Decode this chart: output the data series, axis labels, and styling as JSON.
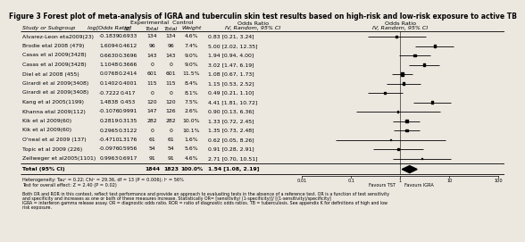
{
  "title": "Figure 3 Forest plot of meta-analysis of IGRA and tuberculin skin test results based on high-risk and low-risk exposure to active TB",
  "studies": [
    {
      "name": "Alvarez-Leon eta2009(23)",
      "log_or": -0.1839,
      "se": 0.6933,
      "exp_total": "134",
      "ctrl_total": "134",
      "weight": "4.6%",
      "or_text": "0.83 [0.21, 3.24]"
    },
    {
      "name": "Brodie etal 2008 (479)",
      "log_or": 1.6094,
      "se": 0.4612,
      "exp_total": "96",
      "ctrl_total": "96",
      "weight": "7.4%",
      "or_text": "5.00 [2.02, 12.35]"
    },
    {
      "name": "Casas et al 2009(3428)",
      "log_or": 0.663,
      "se": 0.3696,
      "exp_total": "143",
      "ctrl_total": "143",
      "weight": "9.0%",
      "or_text": "1.94 [0.94, 4.00]"
    },
    {
      "name": "Casas et al 2009(3428)",
      "log_or": 1.1048,
      "se": 0.3666,
      "exp_total": "0",
      "ctrl_total": "0",
      "weight": "9.0%",
      "or_text": "3.02 [1.47, 6.19]"
    },
    {
      "name": "Diel et al 2008 (455)",
      "log_or": 0.0768,
      "se": 0.2414,
      "exp_total": "601",
      "ctrl_total": "601",
      "weight": "11.5%",
      "or_text": "1.08 [0.67, 1.73]"
    },
    {
      "name": "Girardi et al 2009(3408)",
      "log_or": 0.1402,
      "se": 0.4001,
      "exp_total": "115",
      "ctrl_total": "115",
      "weight": "8.4%",
      "or_text": "1.15 [0.53, 2.52]"
    },
    {
      "name": "Girardi et al 2009(3408)",
      "log_or": -0.7222,
      "se": 0.417,
      "exp_total": "0",
      "ctrl_total": "0",
      "weight": "8.1%",
      "or_text": "0.49 [0.21, 1.10]"
    },
    {
      "name": "Kang et al 2005(1199)",
      "log_or": 1.4838,
      "se": 0.453,
      "exp_total": "120",
      "ctrl_total": "120",
      "weight": "7.5%",
      "or_text": "4.41 [1.81, 10.72]"
    },
    {
      "name": "Khanna etal 2009(112)",
      "log_or": -0.1076,
      "se": 0.9991,
      "exp_total": "147",
      "ctrl_total": "126",
      "weight": "2.6%",
      "or_text": "0.90 [0.13, 6.36]"
    },
    {
      "name": "Kik et al 2009(60)",
      "log_or": 0.2819,
      "se": 0.3135,
      "exp_total": "282",
      "ctrl_total": "282",
      "weight": "10.0%",
      "or_text": "1.33 [0.72, 2.45]"
    },
    {
      "name": "Kik et al 2009(60)",
      "log_or": 0.2965,
      "se": 0.3122,
      "exp_total": "0",
      "ctrl_total": "0",
      "weight": "10.1%",
      "or_text": "1.35 [0.73, 2.48]"
    },
    {
      "name": "O'neal et al 2009 (137)",
      "log_or": -0.471,
      "se": 1.3176,
      "exp_total": "61",
      "ctrl_total": "61",
      "weight": "1.6%",
      "or_text": "0.62 [0.05, 8.26]"
    },
    {
      "name": "Topic et al 2009 (226)",
      "log_or": -0.0976,
      "se": 0.5956,
      "exp_total": "54",
      "ctrl_total": "54",
      "weight": "5.6%",
      "or_text": "0.91 [0.28, 2.91]"
    },
    {
      "name": "Zellweger et al2005(1101)",
      "log_or": 0.9963,
      "se": 0.6917,
      "exp_total": "91",
      "ctrl_total": "91",
      "weight": "4.6%",
      "or_text": "2.71 [0.70, 10.51]"
    }
  ],
  "total": {
    "exp_total": "1844",
    "ctrl_total": "1823",
    "weight": "100.0%",
    "or_text": "1.54 [1.08, 2.19]",
    "log_or": 0.4318,
    "ci_lo": 1.08,
    "ci_hi": 2.19
  },
  "heterogeneity": "Heterogeneity: Tau² = 0.22; Chi² = 29.36, df = 13 (P = 0.006); I² = 56%",
  "overall_test": "Test for overall effect: Z = 2.40 (P = 0.02)",
  "footnote1": "Both OR and ROR in this context, reflect test performance and provide an approach to evaluating tests in the absence of a reference test. OR is a function of test sensitivity",
  "footnote2": "and specificity and increases as one or both of these measures increase. Statistically OR= [sensitivity/ (1-specificity)]/ [(1-sensitivity)/specificity]",
  "footnote3": "IGRA = interferon gamma release assay. OR = diagnostic odds ratio. ROR = ratio of diagnostic odds ratios. TB = tuberculosis. See appendix K for definitions of high and low",
  "footnote4": "risk exposure.",
  "favours_left": "Favours TST",
  "favours_right": "Favours IGRA",
  "bg_color": "#ece8e0",
  "x_ticks": [
    0.01,
    0.1,
    1,
    10,
    100
  ],
  "log10_min": -2.0,
  "log10_max": 2.0
}
